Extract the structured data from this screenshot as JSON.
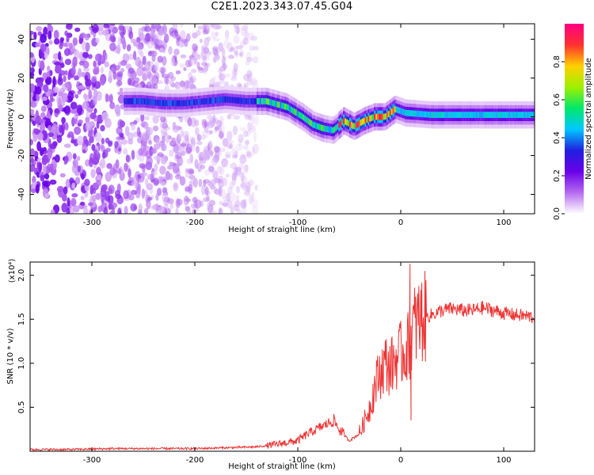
{
  "title": "C2E1.2023.343.07.45.G04",
  "chart_data": [
    {
      "type": "heatmap",
      "xlabel": "Height of straight line (km)",
      "ylabel": "Frequency (Hz)",
      "xlim": [
        -360,
        130
      ],
      "ylim": [
        -50,
        48
      ],
      "x_ticks": [
        -300,
        -200,
        -100,
        0,
        100
      ],
      "y_ticks": [
        -40,
        -20,
        0,
        20,
        40
      ],
      "colorbar": {
        "label": "Normalized spectral amplitude",
        "range": [
          0.0,
          1.0
        ],
        "ticks": [
          "0.0",
          "0.2",
          "0.4",
          "0.6",
          "0.8"
        ],
        "tick_values": [
          0.0,
          0.2,
          0.4,
          0.6,
          0.8
        ],
        "colormap": [
          "#ffffff",
          "#b56cf0",
          "#6a00e8",
          "#2020e0",
          "#00c8ff",
          "#00e86a",
          "#a0f000",
          "#ffd000",
          "#ff3030",
          "#ff0080"
        ]
      },
      "ridge": [
        {
          "x": -268,
          "y": 8
        },
        {
          "x": -250,
          "y": 8
        },
        {
          "x": -230,
          "y": 7
        },
        {
          "x": -210,
          "y": 7
        },
        {
          "x": -190,
          "y": 8
        },
        {
          "x": -170,
          "y": 9
        },
        {
          "x": -150,
          "y": 8
        },
        {
          "x": -130,
          "y": 8
        },
        {
          "x": -110,
          "y": 5
        },
        {
          "x": -95,
          "y": 0
        },
        {
          "x": -85,
          "y": -4
        },
        {
          "x": -75,
          "y": -6
        },
        {
          "x": -65,
          "y": -7
        },
        {
          "x": -55,
          "y": -2
        },
        {
          "x": -45,
          "y": -5
        },
        {
          "x": -35,
          "y": -2
        },
        {
          "x": -25,
          "y": 0
        },
        {
          "x": -15,
          "y": 0
        },
        {
          "x": -5,
          "y": 4
        },
        {
          "x": 5,
          "y": 2
        },
        {
          "x": 30,
          "y": 1
        },
        {
          "x": 60,
          "y": 1
        },
        {
          "x": 100,
          "y": 1
        },
        {
          "x": 130,
          "y": 1
        }
      ]
    },
    {
      "type": "line",
      "xlabel": "Height of straight line (km)",
      "ylabel": "SNR (10 * v/v)",
      "yscale_label": "(x10⁴)",
      "xlim": [
        -360,
        130
      ],
      "ylim": [
        0,
        2.15
      ],
      "x_ticks": [
        -300,
        -200,
        -100,
        0,
        100
      ],
      "y_ticks": [
        0.5,
        1.0,
        1.5,
        2.0
      ],
      "y_tick_labels": [
        "0.5",
        "1.0",
        "1.5",
        "2.0"
      ],
      "line_color": "#ee3333",
      "series": [
        {
          "x": [
            -360,
            -320,
            -280,
            -240,
            -200,
            -170,
            -140,
            -120,
            -100,
            -90,
            -80,
            -70,
            -65,
            -60,
            -50,
            -40,
            -30,
            -25,
            -20,
            -15,
            -10,
            -5,
            0,
            5,
            8,
            10,
            12,
            15,
            20,
            30,
            40,
            50,
            60,
            70,
            80,
            90,
            100,
            110,
            120,
            130
          ],
          "values": [
            0.02,
            0.02,
            0.03,
            0.03,
            0.03,
            0.04,
            0.05,
            0.08,
            0.12,
            0.2,
            0.26,
            0.32,
            0.35,
            0.25,
            0.12,
            0.2,
            0.5,
            0.75,
            0.9,
            1.0,
            0.95,
            1.05,
            1.1,
            1.15,
            1.2,
            1.3,
            1.4,
            1.45,
            1.5,
            1.55,
            1.6,
            1.62,
            1.6,
            1.6,
            1.63,
            1.6,
            1.57,
            1.55,
            1.54,
            1.52
          ]
        }
      ],
      "spikes": [
        {
          "x": 9,
          "y": 2.13
        },
        {
          "x": 10,
          "y": 0.35
        }
      ]
    }
  ]
}
